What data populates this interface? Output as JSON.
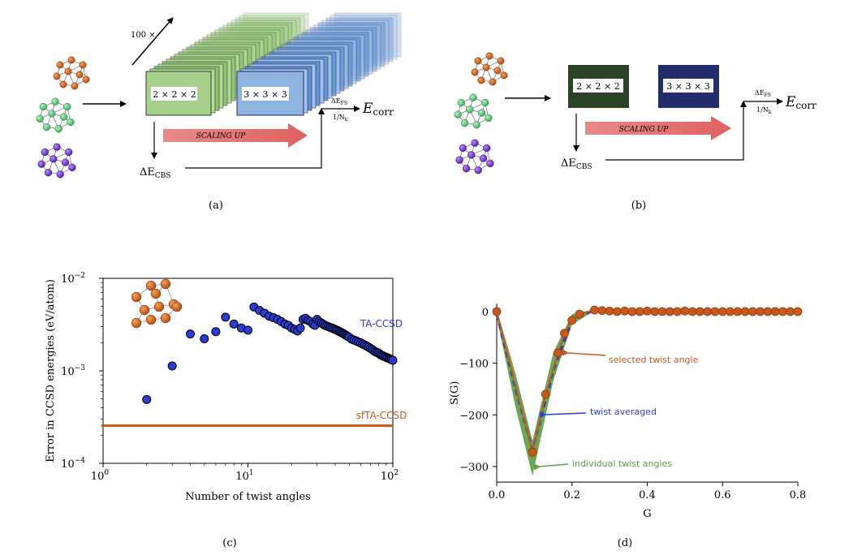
{
  "colors": {
    "copper": "#d2691e",
    "copper_dark": "#a3450f",
    "green_atom": "#6fd28a",
    "purple_atom": "#7d3bd8",
    "green_box": "#2b4226",
    "blue_box": "#232d6e",
    "light_green_box": "#a8d08d",
    "light_blue_box": "#8fb4df",
    "arrow_red": "#e57373",
    "ta_blue": "#2a3bd6",
    "sf_orange": "#c8581c",
    "twist_green": "#5aa040"
  },
  "panel_a": {
    "caption": "(a)",
    "count_label": "100 ×",
    "box_small": "2 × 2 × 2",
    "box_large": "3 × 3 × 3",
    "arrow_label": "SCALING UP",
    "delta_fs": "ΔE",
    "delta_fs_sub": "FS",
    "inv_nk": "1/N",
    "inv_nk_sub": "k",
    "delta_cbs": "ΔE",
    "delta_cbs_sub": "CBS",
    "e_corr": "E",
    "e_corr_sub": "corr"
  },
  "panel_b": {
    "caption": "(b)",
    "box_small": "2 × 2 × 2",
    "box_large": "3 × 3 × 3",
    "arrow_label": "SCALING UP",
    "delta_fs": "ΔE",
    "delta_fs_sub": "FS",
    "inv_nk": "1/N",
    "inv_nk_sub": "k",
    "delta_cbs": "ΔE",
    "delta_cbs_sub": "CBS",
    "e_corr": "E",
    "e_corr_sub": "corr"
  },
  "chart_data": [
    {
      "panel": "(c)",
      "type": "scatter",
      "xlabel": "Number of twist angles",
      "ylabel": "Error in CCSD energies (eV/atom)",
      "xscale": "log",
      "yscale": "log",
      "xlim": [
        1,
        100
      ],
      "ylim": [
        0.0001,
        0.01
      ],
      "x_ticks": [
        "10^0",
        "10^1",
        "10^2"
      ],
      "y_ticks": [
        "10^-4",
        "10^-3",
        "10^-2"
      ],
      "series": [
        {
          "name": "TA-CCSD",
          "kind": "scatter",
          "color": "#2a3bd6",
          "x": [
            2,
            3,
            4,
            5,
            6,
            7,
            8,
            9,
            10,
            11,
            12,
            13,
            14,
            15,
            16,
            17,
            18,
            19,
            20,
            21,
            22,
            23,
            24,
            25,
            26,
            27,
            28,
            29,
            30,
            31,
            32,
            33,
            34,
            35,
            36,
            37,
            38,
            39,
            40,
            41,
            42,
            43,
            44,
            45,
            46,
            47,
            48,
            49,
            50,
            52,
            54,
            56,
            58,
            60,
            62,
            64,
            66,
            68,
            70,
            72,
            74,
            76,
            78,
            80,
            82,
            84,
            86,
            88,
            90,
            92,
            94,
            96,
            98,
            100
          ],
          "y": [
            0.00049,
            0.00113,
            0.0025,
            0.00222,
            0.00265,
            0.0038,
            0.0032,
            0.0029,
            0.00275,
            0.0049,
            0.0045,
            0.0042,
            0.0039,
            0.00375,
            0.0036,
            0.0034,
            0.0032,
            0.0031,
            0.0029,
            0.0028,
            0.0027,
            0.0029,
            0.0036,
            0.0037,
            0.0035,
            0.0034,
            0.0032,
            0.0031,
            0.0036,
            0.0034,
            0.0033,
            0.0032,
            0.0031,
            0.00305,
            0.003,
            0.00295,
            0.0029,
            0.00285,
            0.0028,
            0.00275,
            0.0027,
            0.00265,
            0.0026,
            0.00255,
            0.0025,
            0.00245,
            0.0024,
            0.00235,
            0.0023,
            0.0022,
            0.00215,
            0.0021,
            0.00205,
            0.002,
            0.00195,
            0.0019,
            0.00185,
            0.0018,
            0.00175,
            0.0017,
            0.00165,
            0.0016,
            0.00158,
            0.00155,
            0.0015,
            0.00147,
            0.00145,
            0.00142,
            0.0014,
            0.00138,
            0.00136,
            0.00134,
            0.00132,
            0.0013
          ]
        },
        {
          "name": "sfTA-CCSD",
          "kind": "hline",
          "color": "#c8581c",
          "x": [
            2,
            100
          ],
          "y": [
            0.000255,
            0.000255
          ]
        }
      ]
    },
    {
      "panel": "(d)",
      "type": "line",
      "xlabel": "G",
      "ylabel": "S(G)",
      "xlim": [
        0.0,
        0.8
      ],
      "ylim": [
        -330,
        15
      ],
      "x_ticks": [
        "0.0",
        "0.2",
        "0.4",
        "0.6",
        "0.8"
      ],
      "y_ticks": [
        "0",
        "−100",
        "−200",
        "−300"
      ],
      "series": [
        {
          "name": "individual twist angles",
          "kind": "band",
          "color": "#5aa040",
          "x": [
            0.0,
            0.05,
            0.095,
            0.15,
            0.2,
            0.25,
            0.3,
            0.8
          ],
          "y_low": [
            -12,
            -185,
            -318,
            -135,
            -25,
            -3,
            0,
            0
          ],
          "y_high": [
            5,
            -120,
            -250,
            -80,
            -5,
            3,
            3,
            2
          ]
        },
        {
          "name": "twist averaged",
          "kind": "dashed",
          "color": "#2a3bd6",
          "x": [
            0.0,
            0.05,
            0.095,
            0.15,
            0.2,
            0.25,
            0.27,
            0.8
          ],
          "y": [
            -5,
            -150,
            -268,
            -115,
            -17,
            0,
            3,
            0
          ]
        },
        {
          "name": "selected twist angle",
          "kind": "line_markers",
          "color": "#c8581c",
          "x": [
            0.0,
            0.095,
            0.13,
            0.163,
            0.18,
            0.2,
            0.22,
            0.26,
            0.28,
            0.3,
            0.32,
            0.34,
            0.36,
            0.38,
            0.4,
            0.42,
            0.44,
            0.46,
            0.48,
            0.5,
            0.52,
            0.54,
            0.56,
            0.58,
            0.6,
            0.62,
            0.64,
            0.66,
            0.68,
            0.7,
            0.72,
            0.74,
            0.76,
            0.78,
            0.8
          ],
          "y": [
            0,
            -272,
            -160,
            -80,
            -42,
            -17,
            -5,
            3,
            2,
            1,
            0,
            1,
            0,
            0,
            1,
            0,
            0,
            0,
            0,
            1,
            0,
            0,
            0,
            0,
            0,
            0,
            0,
            0,
            0,
            0,
            0,
            0,
            0,
            0,
            0
          ]
        }
      ]
    }
  ],
  "labels_c": {
    "caption": "(c)",
    "series_ta": "TA-CCSD",
    "series_sf": "sfTA-CCSD"
  },
  "labels_d": {
    "caption": "(d)",
    "ann_selected": "selected twist angle",
    "ann_averaged": "twist averaged",
    "ann_individual": "individual twist angles"
  }
}
